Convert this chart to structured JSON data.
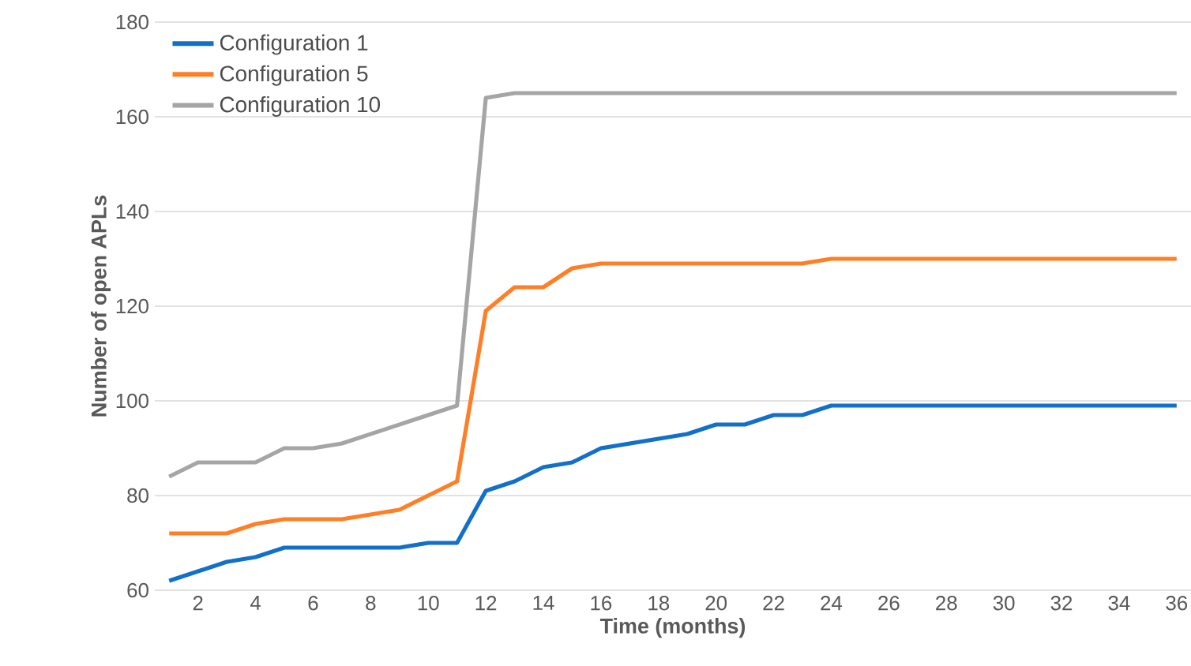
{
  "chart_data": {
    "type": "line",
    "xlabel": "Time (months)",
    "ylabel": "Number of open APLs",
    "x": [
      1,
      2,
      3,
      4,
      5,
      6,
      7,
      8,
      9,
      10,
      11,
      12,
      13,
      14,
      15,
      16,
      17,
      18,
      19,
      20,
      21,
      22,
      23,
      24,
      25,
      26,
      27,
      28,
      29,
      30,
      31,
      32,
      33,
      34,
      35,
      36
    ],
    "series": [
      {
        "name": "Configuration 1",
        "color": "#1370c8",
        "values": [
          62,
          64,
          66,
          67,
          69,
          69,
          69,
          69,
          69,
          70,
          70,
          81,
          83,
          86,
          87,
          90,
          91,
          92,
          93,
          95,
          95,
          97,
          97,
          99,
          99,
          99,
          99,
          99,
          99,
          99,
          99,
          99,
          99,
          99,
          99,
          99
        ]
      },
      {
        "name": "Configuration 5",
        "color": "#ff7f27",
        "values": [
          72,
          72,
          72,
          74,
          75,
          75,
          75,
          76,
          77,
          80,
          83,
          119,
          124,
          124,
          128,
          129,
          129,
          129,
          129,
          129,
          129,
          129,
          129,
          130,
          130,
          130,
          130,
          130,
          130,
          130,
          130,
          130,
          130,
          130,
          130,
          130
        ]
      },
      {
        "name": "Configuration 10",
        "color": "#a5a5a5",
        "values": [
          84,
          87,
          87,
          87,
          90,
          90,
          91,
          93,
          95,
          97,
          99,
          164,
          165,
          165,
          165,
          165,
          165,
          165,
          165,
          165,
          165,
          165,
          165,
          165,
          165,
          165,
          165,
          165,
          165,
          165,
          165,
          165,
          165,
          165,
          165,
          165
        ]
      }
    ],
    "xlim": [
      0.5,
      36.5
    ],
    "xticks": [
      2,
      4,
      6,
      8,
      10,
      12,
      14,
      16,
      18,
      20,
      22,
      24,
      26,
      28,
      30,
      32,
      34,
      36
    ],
    "ylim": [
      60,
      180
    ],
    "yticks": [
      60,
      80,
      100,
      120,
      140,
      160,
      180
    ],
    "grid": "y",
    "legend": "top left",
    "marker": "none",
    "line_style": "solid"
  }
}
